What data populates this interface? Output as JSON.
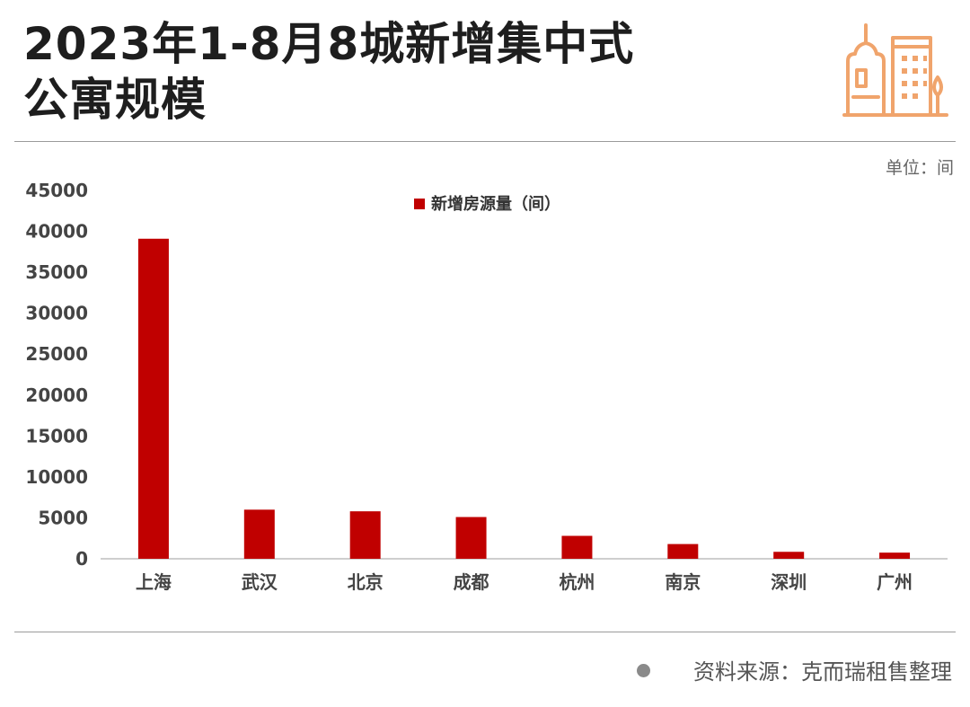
{
  "title_lines": [
    "2023年1-8月8城新增集中式",
    "公寓规模"
  ],
  "unit_label": "单位：间",
  "source": "资料来源：克而瑞租售整理",
  "colors": {
    "bar": "#c00000",
    "logo": "#f0a46c",
    "title": "#1e1e1e",
    "rule": "#9a9a9a"
  },
  "logo_icon": "city-buildings-icon",
  "chart_data": {
    "type": "bar",
    "title": "",
    "xlabel": "",
    "ylabel": "",
    "categories": [
      "上海",
      "武汉",
      "北京",
      "成都",
      "杭州",
      "南京",
      "深圳",
      "广州"
    ],
    "series": [
      {
        "name": "新增房源量（间）",
        "values": [
          39100,
          6000,
          5800,
          5100,
          2800,
          1800,
          850,
          750
        ]
      }
    ],
    "ylim": [
      0,
      45000
    ],
    "yticks": [
      0,
      5000,
      10000,
      15000,
      20000,
      25000,
      30000,
      35000,
      40000,
      45000
    ],
    "grid": false,
    "legend": "top-center"
  }
}
